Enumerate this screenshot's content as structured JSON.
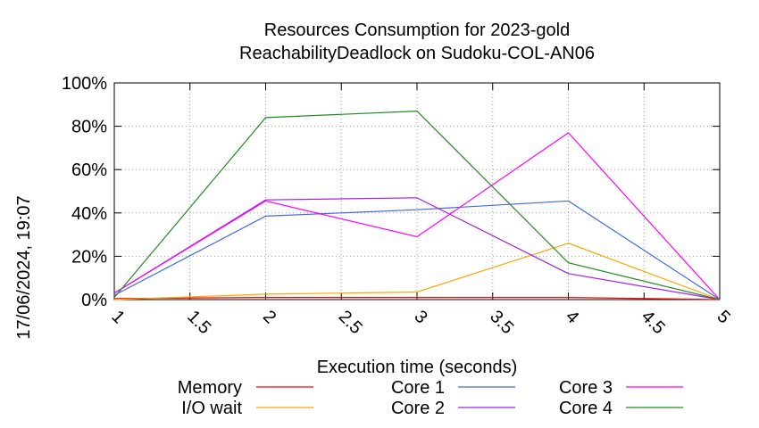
{
  "chart_data": {
    "type": "line",
    "title_line1": "Resources Consumption for 2023-gold",
    "title_line2": "ReachabilityDeadlock on Sudoku-COL-AN06",
    "xlabel": "Execution time (seconds)",
    "ylabel": "",
    "timestamp": "17/06/2024, 19:07",
    "xlim": [
      1,
      5
    ],
    "ylim": [
      0,
      100
    ],
    "x_ticks": [
      1,
      1.5,
      2,
      2.5,
      3,
      3.5,
      4,
      4.5,
      5
    ],
    "x_tick_labels": [
      "1",
      "1.5",
      "2",
      "2.5",
      "3",
      "3.5",
      "4",
      "4.5",
      "5"
    ],
    "y_ticks": [
      0,
      20,
      40,
      60,
      80,
      100
    ],
    "y_tick_labels": [
      "0%",
      "20%",
      "40%",
      "60%",
      "80%",
      "100%"
    ],
    "grid": true,
    "legend_position": "bottom",
    "series": [
      {
        "name": "Memory",
        "color": "#ff0000",
        "x": [
          1,
          2,
          3,
          4,
          5
        ],
        "values": [
          0.5,
          1,
          1,
          1,
          0
        ]
      },
      {
        "name": "I/O wait",
        "color": "#ffa500",
        "x": [
          1,
          2,
          3,
          4,
          5
        ],
        "values": [
          0,
          2.5,
          3.5,
          26,
          0
        ]
      },
      {
        "name": "Core 1",
        "color": "#4169e1",
        "x": [
          1,
          2,
          3,
          4,
          5
        ],
        "values": [
          2,
          38.5,
          41.5,
          45.5,
          0
        ]
      },
      {
        "name": "Core 2",
        "color": "#a020f0",
        "x": [
          1,
          2,
          3,
          4,
          5
        ],
        "values": [
          3,
          46,
          47,
          12,
          0
        ]
      },
      {
        "name": "Core 3",
        "color": "#ff00ff",
        "x": [
          1,
          2,
          3,
          4,
          5
        ],
        "values": [
          3,
          45.5,
          29,
          77,
          0
        ]
      },
      {
        "name": "Core 4",
        "color": "#228b22",
        "x": [
          1,
          2,
          3,
          4,
          5
        ],
        "values": [
          1,
          84,
          87,
          17,
          0
        ]
      }
    ]
  }
}
